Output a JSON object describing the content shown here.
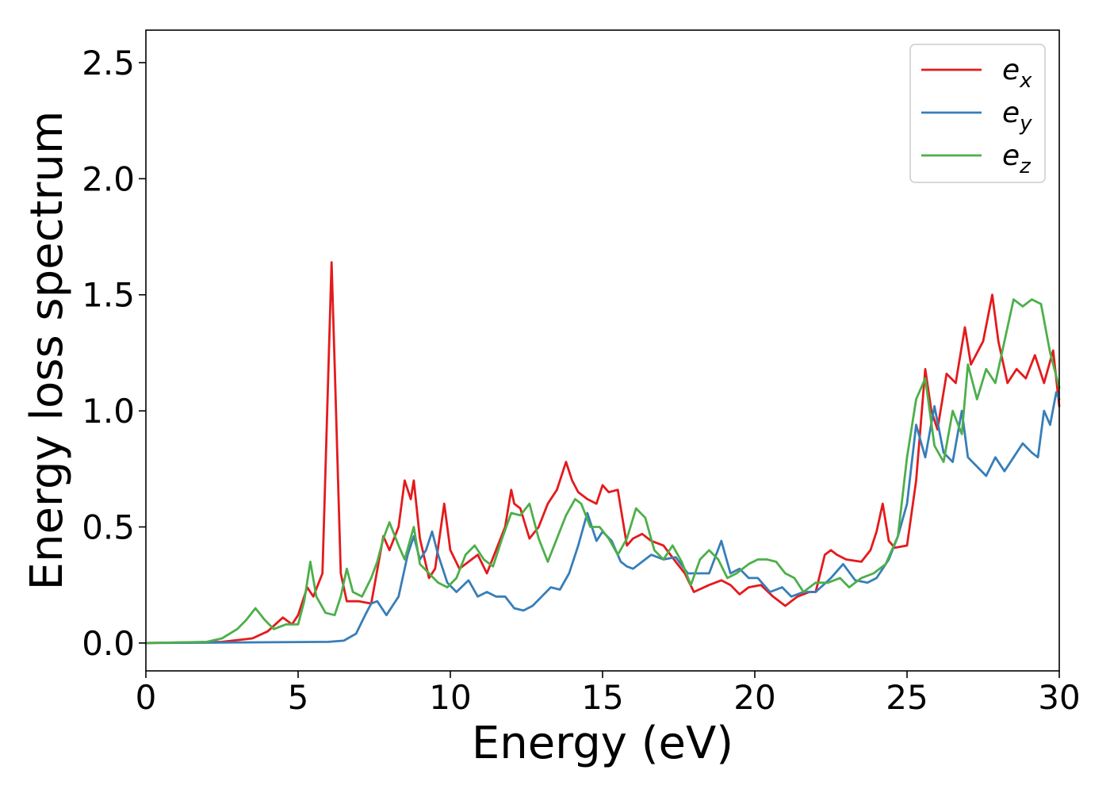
{
  "chart_data": {
    "type": "line",
    "xlabel": "Energy (eV)",
    "ylabel": "Energy loss spectrum",
    "xlim": [
      0,
      30
    ],
    "ylim": [
      -0.12,
      2.64
    ],
    "xticks": [
      0,
      5,
      10,
      15,
      20,
      25,
      30
    ],
    "xtick_labels": [
      "0",
      "5",
      "10",
      "15",
      "20",
      "25",
      "30"
    ],
    "yticks": [
      0.0,
      0.5,
      1.0,
      1.5,
      2.0,
      2.5
    ],
    "ytick_labels": [
      "0.0",
      "0.5",
      "1.0",
      "1.5",
      "2.0",
      "2.5"
    ],
    "grid": false,
    "legend_position": "top-right",
    "series": [
      {
        "name": "e_x",
        "label_base": "e",
        "label_sub": "x",
        "color": "#e41a1c",
        "x": [
          0,
          2.5,
          3.5,
          4.0,
          4.5,
          4.8,
          5.0,
          5.3,
          5.5,
          5.8,
          6.0,
          6.1,
          6.2,
          6.4,
          6.6,
          7.0,
          7.4,
          7.8,
          8.0,
          8.3,
          8.5,
          8.7,
          8.8,
          9.0,
          9.3,
          9.5,
          9.8,
          10.0,
          10.3,
          10.6,
          10.9,
          11.2,
          11.5,
          11.8,
          12.0,
          12.1,
          12.3,
          12.6,
          12.9,
          13.2,
          13.5,
          13.8,
          14.0,
          14.2,
          14.5,
          14.8,
          15.0,
          15.2,
          15.5,
          15.8,
          16.0,
          16.3,
          16.6,
          17.0,
          17.4,
          17.7,
          18.0,
          18.5,
          18.9,
          19.2,
          19.5,
          19.8,
          20.2,
          20.6,
          21.0,
          21.4,
          21.8,
          22.0,
          22.3,
          22.5,
          22.7,
          23.0,
          23.5,
          23.8,
          24.0,
          24.2,
          24.4,
          24.6,
          25.0,
          25.3,
          25.6,
          25.8,
          26.0,
          26.3,
          26.6,
          26.9,
          27.1,
          27.5,
          27.8,
          28.0,
          28.3,
          28.6,
          28.9,
          29.2,
          29.5,
          29.8,
          30.0
        ],
        "y": [
          0.0,
          0.005,
          0.02,
          0.05,
          0.11,
          0.08,
          0.12,
          0.24,
          0.2,
          0.3,
          1.2,
          1.64,
          1.2,
          0.3,
          0.18,
          0.18,
          0.17,
          0.46,
          0.4,
          0.5,
          0.7,
          0.62,
          0.7,
          0.45,
          0.28,
          0.32,
          0.6,
          0.4,
          0.32,
          0.35,
          0.38,
          0.3,
          0.4,
          0.5,
          0.66,
          0.6,
          0.58,
          0.45,
          0.5,
          0.6,
          0.66,
          0.78,
          0.7,
          0.65,
          0.62,
          0.6,
          0.68,
          0.65,
          0.66,
          0.42,
          0.45,
          0.47,
          0.44,
          0.42,
          0.35,
          0.3,
          0.22,
          0.25,
          0.27,
          0.25,
          0.21,
          0.24,
          0.25,
          0.2,
          0.16,
          0.2,
          0.22,
          0.22,
          0.38,
          0.4,
          0.38,
          0.36,
          0.35,
          0.4,
          0.48,
          0.6,
          0.44,
          0.41,
          0.42,
          0.7,
          1.18,
          1.0,
          0.92,
          1.16,
          1.12,
          1.36,
          1.2,
          1.3,
          1.5,
          1.3,
          1.12,
          1.18,
          1.14,
          1.24,
          1.12,
          1.26,
          1.02
        ]
      },
      {
        "name": "e_y",
        "label_base": "e",
        "label_sub": "y",
        "color": "#377eb8",
        "x": [
          0,
          6.0,
          6.5,
          6.9,
          7.2,
          7.4,
          7.6,
          7.9,
          8.3,
          8.6,
          8.8,
          9.0,
          9.2,
          9.4,
          9.6,
          9.9,
          10.2,
          10.6,
          10.9,
          11.2,
          11.5,
          11.8,
          12.1,
          12.4,
          12.7,
          13.0,
          13.3,
          13.6,
          13.9,
          14.2,
          14.5,
          14.8,
          15.0,
          15.3,
          15.6,
          15.8,
          16.0,
          16.3,
          16.6,
          17.0,
          17.4,
          17.8,
          18.1,
          18.5,
          18.9,
          19.2,
          19.5,
          19.8,
          20.1,
          20.5,
          20.9,
          21.2,
          21.6,
          22.0,
          22.5,
          22.9,
          23.3,
          23.7,
          24.0,
          24.4,
          24.7,
          25.0,
          25.3,
          25.6,
          25.9,
          26.2,
          26.5,
          26.8,
          27.0,
          27.3,
          27.6,
          27.9,
          28.2,
          28.5,
          28.8,
          29.1,
          29.3,
          29.5,
          29.7,
          29.9,
          30.0
        ],
        "y": [
          0.0,
          0.005,
          0.01,
          0.04,
          0.12,
          0.17,
          0.18,
          0.12,
          0.2,
          0.38,
          0.46,
          0.36,
          0.4,
          0.48,
          0.38,
          0.26,
          0.22,
          0.27,
          0.2,
          0.22,
          0.2,
          0.2,
          0.15,
          0.14,
          0.16,
          0.2,
          0.24,
          0.23,
          0.3,
          0.42,
          0.56,
          0.44,
          0.48,
          0.44,
          0.35,
          0.33,
          0.32,
          0.35,
          0.38,
          0.36,
          0.37,
          0.3,
          0.3,
          0.3,
          0.44,
          0.3,
          0.32,
          0.28,
          0.28,
          0.22,
          0.24,
          0.2,
          0.22,
          0.22,
          0.28,
          0.34,
          0.27,
          0.26,
          0.28,
          0.36,
          0.46,
          0.6,
          0.94,
          0.8,
          1.02,
          0.82,
          0.78,
          1.0,
          0.8,
          0.76,
          0.72,
          0.8,
          0.74,
          0.8,
          0.86,
          0.82,
          0.8,
          1.0,
          0.94,
          1.08,
          1.05
        ]
      },
      {
        "name": "e_z",
        "label_base": "e",
        "label_sub": "z",
        "color": "#4daf4a",
        "x": [
          0,
          2.0,
          2.5,
          3.0,
          3.3,
          3.6,
          3.9,
          4.2,
          4.6,
          5.0,
          5.2,
          5.4,
          5.6,
          5.9,
          6.2,
          6.4,
          6.6,
          6.8,
          7.1,
          7.4,
          7.6,
          7.8,
          8.0,
          8.3,
          8.5,
          8.8,
          9.0,
          9.3,
          9.6,
          9.9,
          10.2,
          10.5,
          10.8,
          11.1,
          11.4,
          11.7,
          12.0,
          12.3,
          12.6,
          12.9,
          13.2,
          13.5,
          13.8,
          14.1,
          14.3,
          14.6,
          14.9,
          15.2,
          15.5,
          15.8,
          16.1,
          16.4,
          16.7,
          17.0,
          17.3,
          17.6,
          17.9,
          18.2,
          18.5,
          18.8,
          19.1,
          19.4,
          19.8,
          20.1,
          20.4,
          20.7,
          21.0,
          21.3,
          21.6,
          22.0,
          22.4,
          22.8,
          23.1,
          23.5,
          23.9,
          24.3,
          24.7,
          25.0,
          25.3,
          25.6,
          25.9,
          26.2,
          26.5,
          26.8,
          27.0,
          27.3,
          27.6,
          27.9,
          28.2,
          28.5,
          28.8,
          29.1,
          29.4,
          29.7,
          30.0
        ],
        "y": [
          0.0,
          0.005,
          0.02,
          0.06,
          0.1,
          0.15,
          0.1,
          0.06,
          0.08,
          0.08,
          0.18,
          0.35,
          0.2,
          0.13,
          0.12,
          0.2,
          0.32,
          0.22,
          0.2,
          0.28,
          0.35,
          0.45,
          0.52,
          0.42,
          0.36,
          0.5,
          0.34,
          0.3,
          0.26,
          0.24,
          0.28,
          0.38,
          0.42,
          0.36,
          0.33,
          0.45,
          0.56,
          0.55,
          0.6,
          0.45,
          0.35,
          0.45,
          0.55,
          0.62,
          0.6,
          0.5,
          0.5,
          0.45,
          0.38,
          0.45,
          0.58,
          0.54,
          0.4,
          0.36,
          0.42,
          0.35,
          0.25,
          0.36,
          0.4,
          0.36,
          0.28,
          0.3,
          0.34,
          0.36,
          0.36,
          0.35,
          0.3,
          0.28,
          0.22,
          0.26,
          0.26,
          0.28,
          0.24,
          0.28,
          0.3,
          0.34,
          0.46,
          0.8,
          1.05,
          1.14,
          0.85,
          0.78,
          1.0,
          0.9,
          1.2,
          1.05,
          1.18,
          1.12,
          1.3,
          1.48,
          1.45,
          1.48,
          1.46,
          1.25,
          1.1
        ]
      }
    ]
  }
}
